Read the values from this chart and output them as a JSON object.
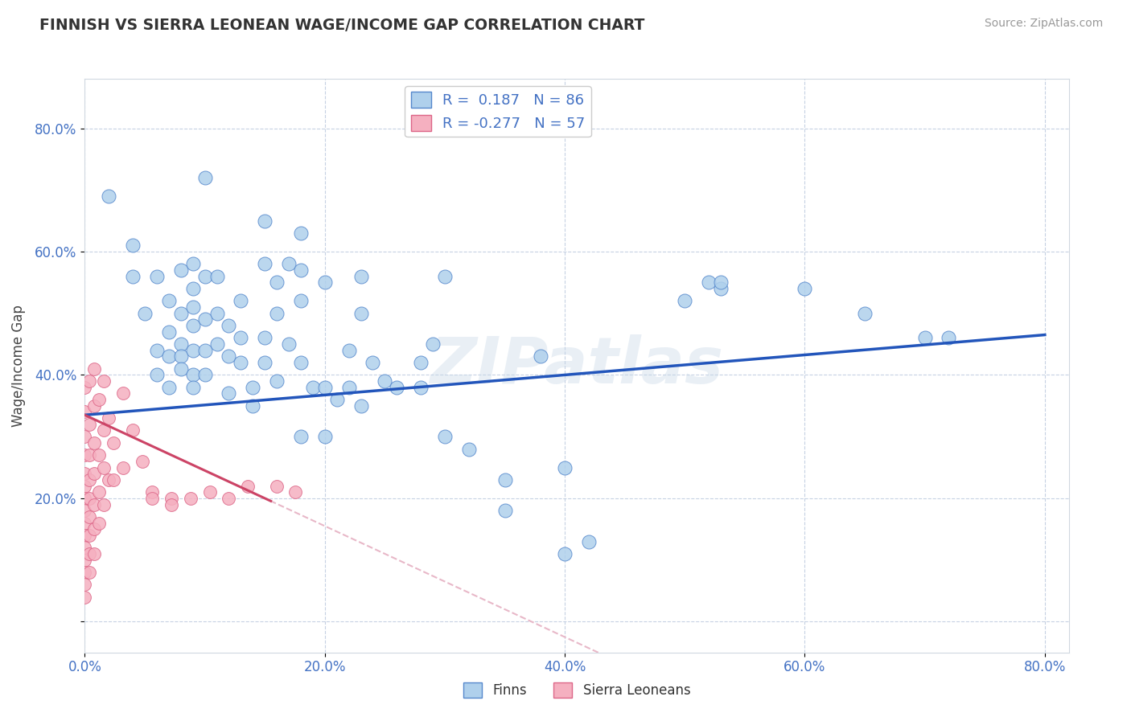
{
  "title": "FINNISH VS SIERRA LEONEAN WAGE/INCOME GAP CORRELATION CHART",
  "source": "Source: ZipAtlas.com",
  "ylabel": "Wage/Income Gap",
  "xlim": [
    0.0,
    0.82
  ],
  "ylim": [
    -0.05,
    0.88
  ],
  "xticks": [
    0.0,
    0.2,
    0.4,
    0.6,
    0.8
  ],
  "yticks": [
    0.0,
    0.2,
    0.4,
    0.6,
    0.8
  ],
  "xtick_labels": [
    "0.0%",
    "20.0%",
    "40.0%",
    "60.0%",
    "80.0%"
  ],
  "ytick_labels": [
    "",
    "20.0%",
    "40.0%",
    "60.0%",
    "80.0%"
  ],
  "blue_R": "0.187",
  "blue_N": "86",
  "pink_R": "-0.277",
  "pink_N": "57",
  "blue_dot_color": "#afd0ec",
  "blue_edge_color": "#5588cc",
  "pink_dot_color": "#f5b0c0",
  "pink_edge_color": "#dd6688",
  "blue_line_color": "#2255bb",
  "pink_line_solid_color": "#cc4466",
  "pink_line_dash_color": "#e8b8c8",
  "watermark": "ZIPatlas",
  "watermark_color": "#c8d8e8",
  "legend_blue_label": "Finns",
  "legend_pink_label": "Sierra Leoneans",
  "blue_line_y0": 0.335,
  "blue_line_y1": 0.465,
  "pink_line_x_end": 0.155,
  "pink_line_y0": 0.335,
  "pink_line_y1": 0.195,
  "pink_slope": -0.9,
  "pink_intercept": 0.335,
  "blue_scatter_x": [
    0.02,
    0.04,
    0.04,
    0.05,
    0.06,
    0.06,
    0.06,
    0.07,
    0.07,
    0.07,
    0.07,
    0.08,
    0.08,
    0.08,
    0.08,
    0.08,
    0.09,
    0.09,
    0.09,
    0.09,
    0.09,
    0.09,
    0.09,
    0.1,
    0.1,
    0.1,
    0.1,
    0.1,
    0.11,
    0.11,
    0.11,
    0.12,
    0.12,
    0.12,
    0.13,
    0.13,
    0.13,
    0.14,
    0.14,
    0.15,
    0.15,
    0.15,
    0.15,
    0.16,
    0.16,
    0.16,
    0.17,
    0.17,
    0.18,
    0.18,
    0.18,
    0.18,
    0.18,
    0.19,
    0.2,
    0.2,
    0.2,
    0.21,
    0.22,
    0.22,
    0.23,
    0.23,
    0.23,
    0.24,
    0.25,
    0.26,
    0.28,
    0.28,
    0.29,
    0.3,
    0.3,
    0.32,
    0.35,
    0.35,
    0.38,
    0.4,
    0.4,
    0.42,
    0.5,
    0.52,
    0.53,
    0.53,
    0.6,
    0.65,
    0.7,
    0.72
  ],
  "blue_scatter_y": [
    0.69,
    0.61,
    0.56,
    0.5,
    0.56,
    0.44,
    0.4,
    0.52,
    0.47,
    0.43,
    0.38,
    0.57,
    0.5,
    0.45,
    0.43,
    0.41,
    0.58,
    0.54,
    0.51,
    0.48,
    0.44,
    0.4,
    0.38,
    0.72,
    0.56,
    0.49,
    0.44,
    0.4,
    0.56,
    0.5,
    0.45,
    0.48,
    0.43,
    0.37,
    0.52,
    0.46,
    0.42,
    0.38,
    0.35,
    0.65,
    0.58,
    0.46,
    0.42,
    0.55,
    0.5,
    0.39,
    0.58,
    0.45,
    0.63,
    0.57,
    0.52,
    0.42,
    0.3,
    0.38,
    0.55,
    0.38,
    0.3,
    0.36,
    0.44,
    0.38,
    0.56,
    0.5,
    0.35,
    0.42,
    0.39,
    0.38,
    0.42,
    0.38,
    0.45,
    0.56,
    0.3,
    0.28,
    0.23,
    0.18,
    0.43,
    0.25,
    0.11,
    0.13,
    0.52,
    0.55,
    0.54,
    0.55,
    0.54,
    0.5,
    0.46,
    0.46
  ],
  "pink_scatter_x": [
    0.0,
    0.0,
    0.0,
    0.0,
    0.0,
    0.0,
    0.0,
    0.0,
    0.0,
    0.0,
    0.0,
    0.0,
    0.0,
    0.0,
    0.0,
    0.004,
    0.004,
    0.004,
    0.004,
    0.004,
    0.004,
    0.004,
    0.004,
    0.004,
    0.008,
    0.008,
    0.008,
    0.008,
    0.008,
    0.008,
    0.008,
    0.012,
    0.012,
    0.012,
    0.012,
    0.016,
    0.016,
    0.016,
    0.016,
    0.02,
    0.02,
    0.024,
    0.024,
    0.032,
    0.032,
    0.04,
    0.048,
    0.056,
    0.056,
    0.072,
    0.072,
    0.088,
    0.104,
    0.12,
    0.136,
    0.16,
    0.175
  ],
  "pink_scatter_y": [
    0.38,
    0.34,
    0.3,
    0.27,
    0.24,
    0.22,
    0.2,
    0.18,
    0.16,
    0.14,
    0.12,
    0.1,
    0.08,
    0.06,
    0.04,
    0.39,
    0.32,
    0.27,
    0.23,
    0.2,
    0.17,
    0.14,
    0.11,
    0.08,
    0.41,
    0.35,
    0.29,
    0.24,
    0.19,
    0.15,
    0.11,
    0.36,
    0.27,
    0.21,
    0.16,
    0.39,
    0.31,
    0.25,
    0.19,
    0.33,
    0.23,
    0.29,
    0.23,
    0.37,
    0.25,
    0.31,
    0.26,
    0.21,
    0.2,
    0.2,
    0.19,
    0.2,
    0.21,
    0.2,
    0.22,
    0.22,
    0.21
  ]
}
